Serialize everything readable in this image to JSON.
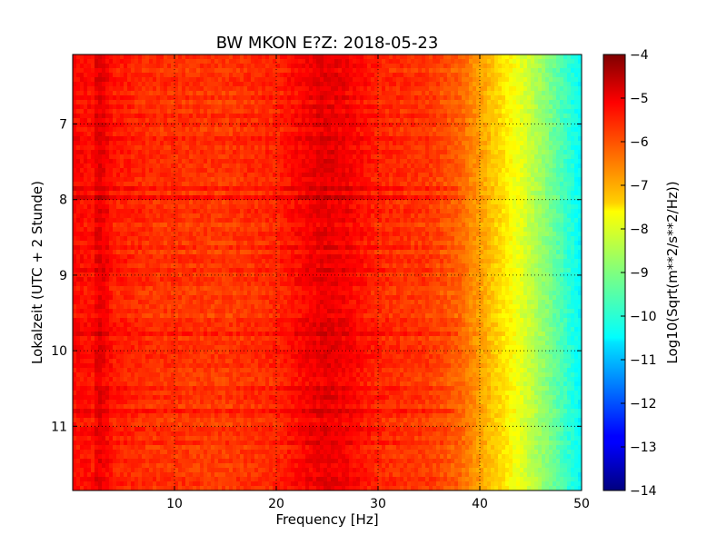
{
  "chart_data": {
    "type": "heatmap",
    "title": "BW MKON E?Z: 2018-05-23",
    "xlabel": "Frequency [Hz]",
    "ylabel": "Lokalzeit (UTC + 2 Stunde)",
    "xlim": [
      0,
      50
    ],
    "ylim": [
      6.08,
      11.85
    ],
    "y_inverted": true,
    "x_ticks": [
      10,
      20,
      30,
      40,
      50
    ],
    "x_tick_labels": [
      "10",
      "20",
      "30",
      "40",
      "50"
    ],
    "y_ticks": [
      7,
      8,
      9,
      10,
      11
    ],
    "y_tick_labels": [
      "7",
      "8",
      "9",
      "10",
      "11"
    ],
    "grid": true,
    "colormap": "jet",
    "colorbar": {
      "label": "Log10(Sqrt(m**2/s**2/Hz))",
      "range": [
        -14,
        -4
      ],
      "ticks": [
        -4,
        -5,
        -6,
        -7,
        -8,
        -9,
        -10,
        -11,
        -12,
        -13,
        -14
      ],
      "tick_labels": [
        "−4",
        "−5",
        "−6",
        "−7",
        "−8",
        "−9",
        "−10",
        "−11",
        "−12",
        "−13",
        "−14"
      ]
    },
    "spectrum_profile": {
      "frequency_hz": [
        0,
        2,
        2.5,
        4,
        8,
        15,
        20,
        23,
        25,
        27,
        30,
        35,
        38,
        40,
        42,
        44,
        46,
        48,
        50
      ],
      "level": [
        -5.3,
        -5.4,
        -4.9,
        -5.5,
        -5.7,
        -5.8,
        -5.6,
        -5.2,
        -5.0,
        -5.2,
        -5.6,
        -5.8,
        -6.2,
        -6.8,
        -7.4,
        -8.0,
        -8.7,
        -9.5,
        -10.3
      ]
    }
  }
}
